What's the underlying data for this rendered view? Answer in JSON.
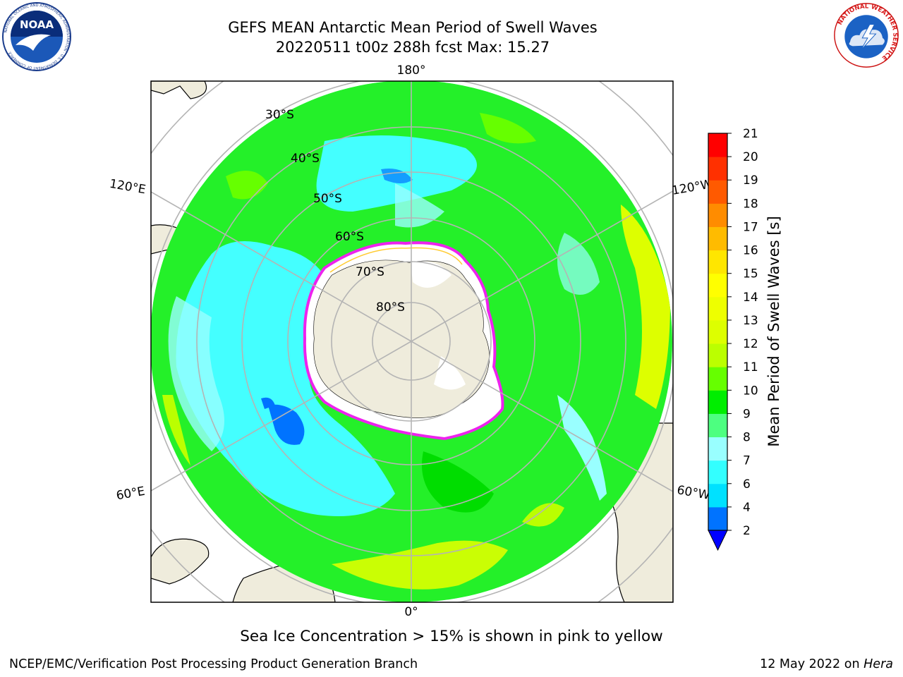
{
  "title": {
    "line1": "GEFS MEAN Antarctic Mean Period of Swell Waves",
    "line2": "20220511 t00z 288h fcst   Max: 15.27"
  },
  "logos": {
    "left": "NOAA",
    "left_ring_text": "NATIONAL OCEANIC AND ATMOSPHERIC ADMINISTRATION · U.S. DEPARTMENT OF COMMERCE",
    "right_ring_text": "NATIONAL WEATHER SERVICE"
  },
  "map": {
    "projection": "south-polar-stereographic",
    "longitude_labels": {
      "top": "180°",
      "bottom": "0°",
      "upper_left": "120°E",
      "upper_right": "120°W",
      "lower_left": "60°E",
      "lower_right": "60°W"
    },
    "latitude_labels": [
      "30°S",
      "40°S",
      "50°S",
      "60°S",
      "70°S",
      "80°S"
    ],
    "colors": {
      "land": "#efecdc",
      "ice": "#ffffff",
      "ice_edge_pink": "#ee22ee",
      "ice_edge_yellow": "#ffcc33",
      "graticule": "#b4b4b4"
    }
  },
  "colorbar": {
    "label": "Mean Period of Swell Waves [s]",
    "ticks": [
      "2",
      "4",
      "6",
      "7",
      "8",
      "9",
      "10",
      "11",
      "12",
      "13",
      "14",
      "15",
      "16",
      "17",
      "18",
      "19",
      "20",
      "21"
    ],
    "colors": [
      "#0000ff",
      "#0073ff",
      "#00e1ff",
      "#33ffff",
      "#99ffff",
      "#4dff80",
      "#00ee00",
      "#66ff00",
      "#bbff00",
      "#ddff00",
      "#eeff00",
      "#ffff00",
      "#ffe600",
      "#ffbb00",
      "#ff8c00",
      "#ff5a00",
      "#ff3000",
      "#ff0000"
    ],
    "extend": "min"
  },
  "note": "Sea Ice Concentration > 15% is shown in pink to yellow",
  "footer": {
    "credit": "NCEP/EMC/Verification Post Processing Product Generation Branch",
    "date": "12 May 2022 on",
    "machine": "Hera"
  }
}
